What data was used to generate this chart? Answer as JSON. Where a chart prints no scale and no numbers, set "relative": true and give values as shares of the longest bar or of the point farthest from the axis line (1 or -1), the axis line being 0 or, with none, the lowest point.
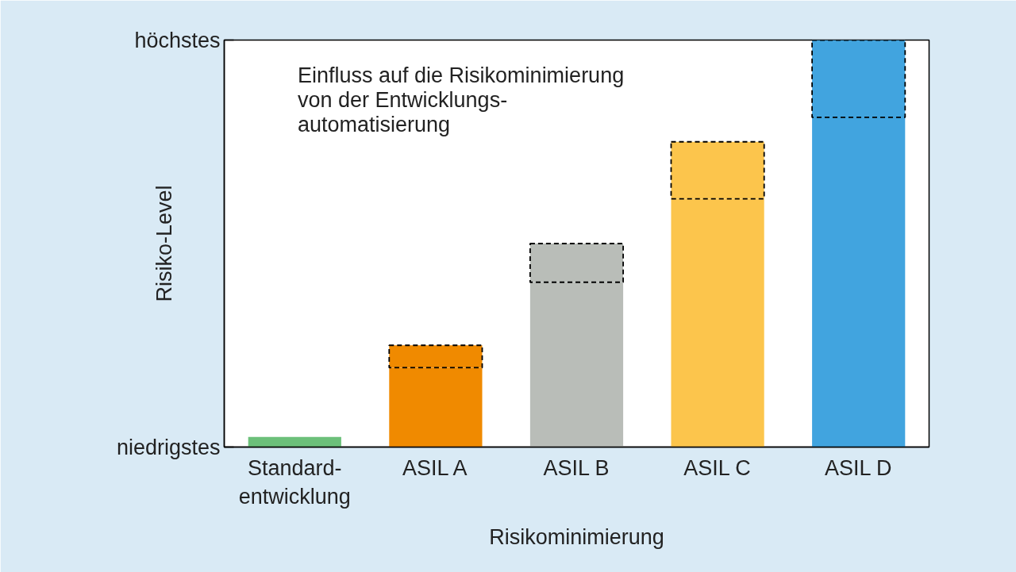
{
  "chart_data": {
    "type": "bar",
    "stacked": true,
    "relative": true,
    "categories": [
      "Standard-\nentwicklung",
      "ASIL A",
      "ASIL B",
      "ASIL C",
      "ASIL D"
    ],
    "xlabel": "Risikominimierung",
    "ylabel": "Risiko-Level",
    "annotations": [
      "höchstes",
      "niedrigstes"
    ],
    "series": [
      {
        "colors": [
          "#6cc07a",
          "#f08a00",
          "#b9bdb8",
          "#fcc54c",
          "#41a4df"
        ],
        "values": [
          0.025,
          0.195,
          0.405,
          0.61,
          0.81
        ]
      },
      {
        "name": "Einfluss auf die Risikominimierung\nvon der Entwicklungs-\nautomatisierung",
        "line_style": "dashed",
        "colors": [
          "#6cc07a",
          "#f08a00",
          "#b9bdb8",
          "#fcc54c",
          "#41a4df"
        ],
        "values": [
          null,
          0.055,
          0.095,
          0.14,
          0.19
        ]
      }
    ],
    "legend": "top left"
  }
}
